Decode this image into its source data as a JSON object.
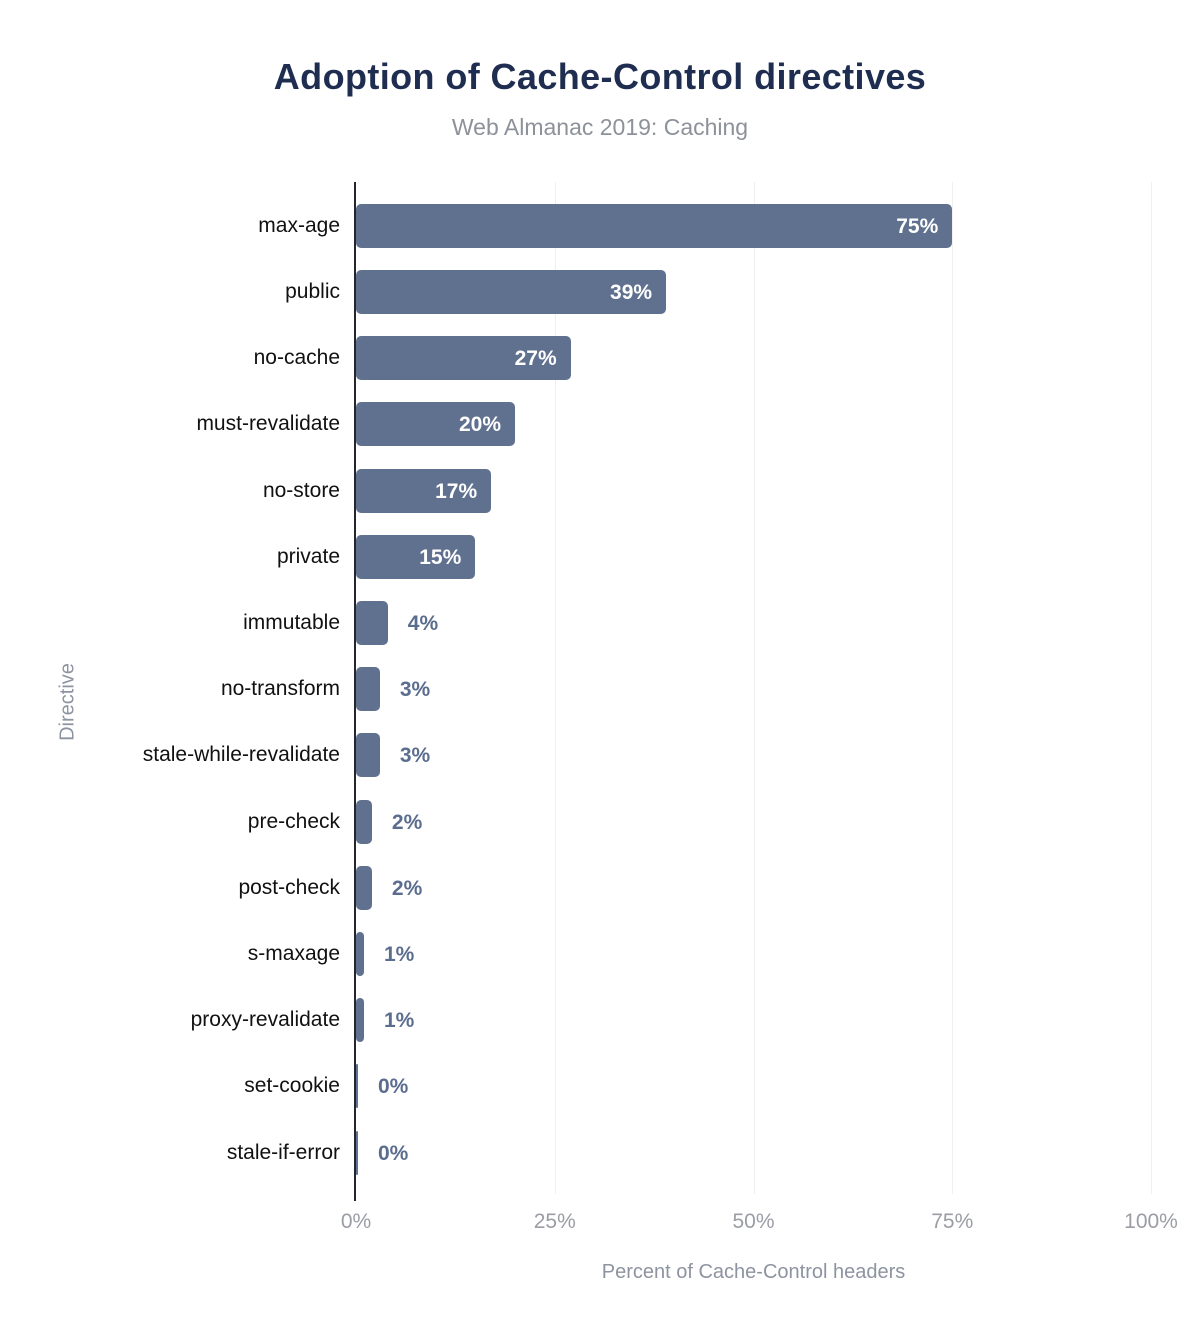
{
  "header": {
    "title": "Adoption of Cache-Control directives",
    "subtitle": "Web Almanac 2019: Caching"
  },
  "chart_data": {
    "type": "bar",
    "orientation": "horizontal",
    "title": "Adoption of Cache-Control directives",
    "subtitle": "Web Almanac 2019: Caching",
    "xlabel": "Percent of Cache-Control headers",
    "ylabel": "Directive",
    "xlim": [
      0,
      100
    ],
    "xticks": [
      0,
      25,
      50,
      75,
      100
    ],
    "xtick_labels": [
      "0%",
      "25%",
      "50%",
      "75%",
      "100%"
    ],
    "grid": "vertical-gridlines",
    "legend": "none",
    "categories": [
      "max-age",
      "public",
      "no-cache",
      "must-revalidate",
      "no-store",
      "private",
      "immutable",
      "no-transform",
      "stale-while-revalidate",
      "pre-check",
      "post-check",
      "s-maxage",
      "proxy-revalidate",
      "set-cookie",
      "stale-if-error"
    ],
    "values": [
      75,
      39,
      27,
      20,
      17,
      15,
      4,
      3,
      3,
      2,
      2,
      1,
      1,
      0,
      0
    ],
    "value_labels": [
      "75%",
      "39%",
      "27%",
      "20%",
      "17%",
      "15%",
      "4%",
      "3%",
      "3%",
      "2%",
      "2%",
      "1%",
      "1%",
      "0%",
      "0%"
    ]
  },
  "colors": {
    "bar": "#5f718f",
    "title": "#1f2e50",
    "subtitle": "#8d9199",
    "axis_line": "#23272d",
    "gridline": "#efefef",
    "tick_label": "#9a9da3",
    "category_label": "#111111",
    "value_label_inside": "#ffffff",
    "value_label_outside": "#5b6d8f",
    "axis_title": "#8d93a0"
  }
}
